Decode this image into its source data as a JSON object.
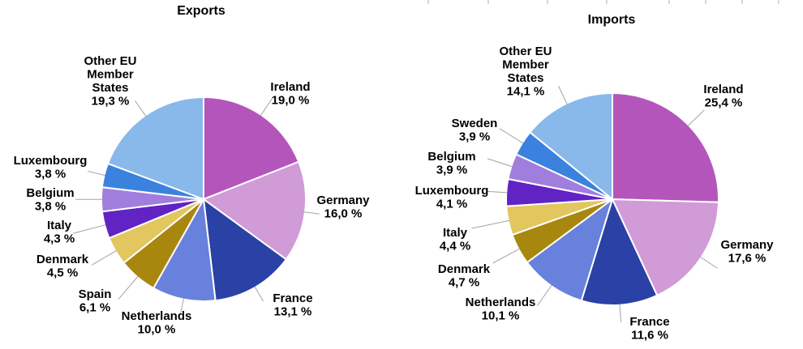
{
  "figure": {
    "background": "#FFFFFF",
    "text_color": "#000000",
    "leader_line_color": "#A3A3A3",
    "slice_separator_color": "#FFFFFF",
    "top_tick_color": "#C9C9C9"
  },
  "chart_data": [
    {
      "type": "pie",
      "title": "Exports",
      "unit": "%",
      "decimal_separator": ",",
      "start_angle_deg": 0,
      "direction": "clockwise",
      "legend_position": "outside-labels-with-leader-lines",
      "slices": [
        {
          "label": "Ireland",
          "value": 19.0,
          "value_label": "19,0 %",
          "color": "#B455BC"
        },
        {
          "label": "Germany",
          "value": 16.0,
          "value_label": "16,0 %",
          "color": "#D09BD7"
        },
        {
          "label": "France",
          "value": 13.1,
          "value_label": "13,1 %",
          "color": "#2A41A5"
        },
        {
          "label": "Netherlands",
          "value": 10.0,
          "value_label": "10,0 %",
          "color": "#6881DC"
        },
        {
          "label": "Spain",
          "value": 6.1,
          "value_label": "6,1 %",
          "color": "#A8870F"
        },
        {
          "label": "Denmark",
          "value": 4.5,
          "value_label": "4,5 %",
          "color": "#E2C65E"
        },
        {
          "label": "Italy",
          "value": 4.3,
          "value_label": "4,3 %",
          "color": "#6123C4"
        },
        {
          "label": "Belgium",
          "value": 3.8,
          "value_label": "3,8 %",
          "color": "#A07EDD"
        },
        {
          "label": "Luxembourg",
          "value": 3.8,
          "value_label": "3,8 %",
          "color": "#3B82DE"
        },
        {
          "label": "Other EU Member States",
          "label_lines": [
            "Other EU",
            "Member",
            "States"
          ],
          "value": 19.3,
          "value_label": "19,3 %",
          "color": "#89B8EB"
        }
      ]
    },
    {
      "type": "pie",
      "title": "Imports",
      "unit": "%",
      "decimal_separator": ",",
      "start_angle_deg": 0,
      "direction": "clockwise",
      "legend_position": "outside-labels-with-leader-lines",
      "slices": [
        {
          "label": "Ireland",
          "value": 25.4,
          "value_label": "25,4 %",
          "color": "#B455BC"
        },
        {
          "label": "Germany",
          "value": 17.6,
          "value_label": "17,6 %",
          "color": "#D09BD7"
        },
        {
          "label": "France",
          "value": 11.6,
          "value_label": "11,6 %",
          "color": "#2A41A5"
        },
        {
          "label": "Netherlands",
          "value": 10.1,
          "value_label": "10,1 %",
          "color": "#6881DC"
        },
        {
          "label": "Denmark",
          "value": 4.7,
          "value_label": "4,7 %",
          "color": "#A8870F"
        },
        {
          "label": "Italy",
          "value": 4.4,
          "value_label": "4,4 %",
          "color": "#E2C65E"
        },
        {
          "label": "Luxembourg",
          "value": 4.1,
          "value_label": "4,1 %",
          "color": "#6123C4"
        },
        {
          "label": "Belgium",
          "value": 3.9,
          "value_label": "3,9 %",
          "color": "#A07EDD"
        },
        {
          "label": "Sweden",
          "value": 3.9,
          "value_label": "3,9 %",
          "color": "#3B82DE"
        },
        {
          "label": "Other EU Member States",
          "label_lines": [
            "Other EU",
            "Member",
            "States"
          ],
          "value": 14.1,
          "value_label": "14,1 %",
          "color": "#89B8EB"
        }
      ]
    }
  ]
}
